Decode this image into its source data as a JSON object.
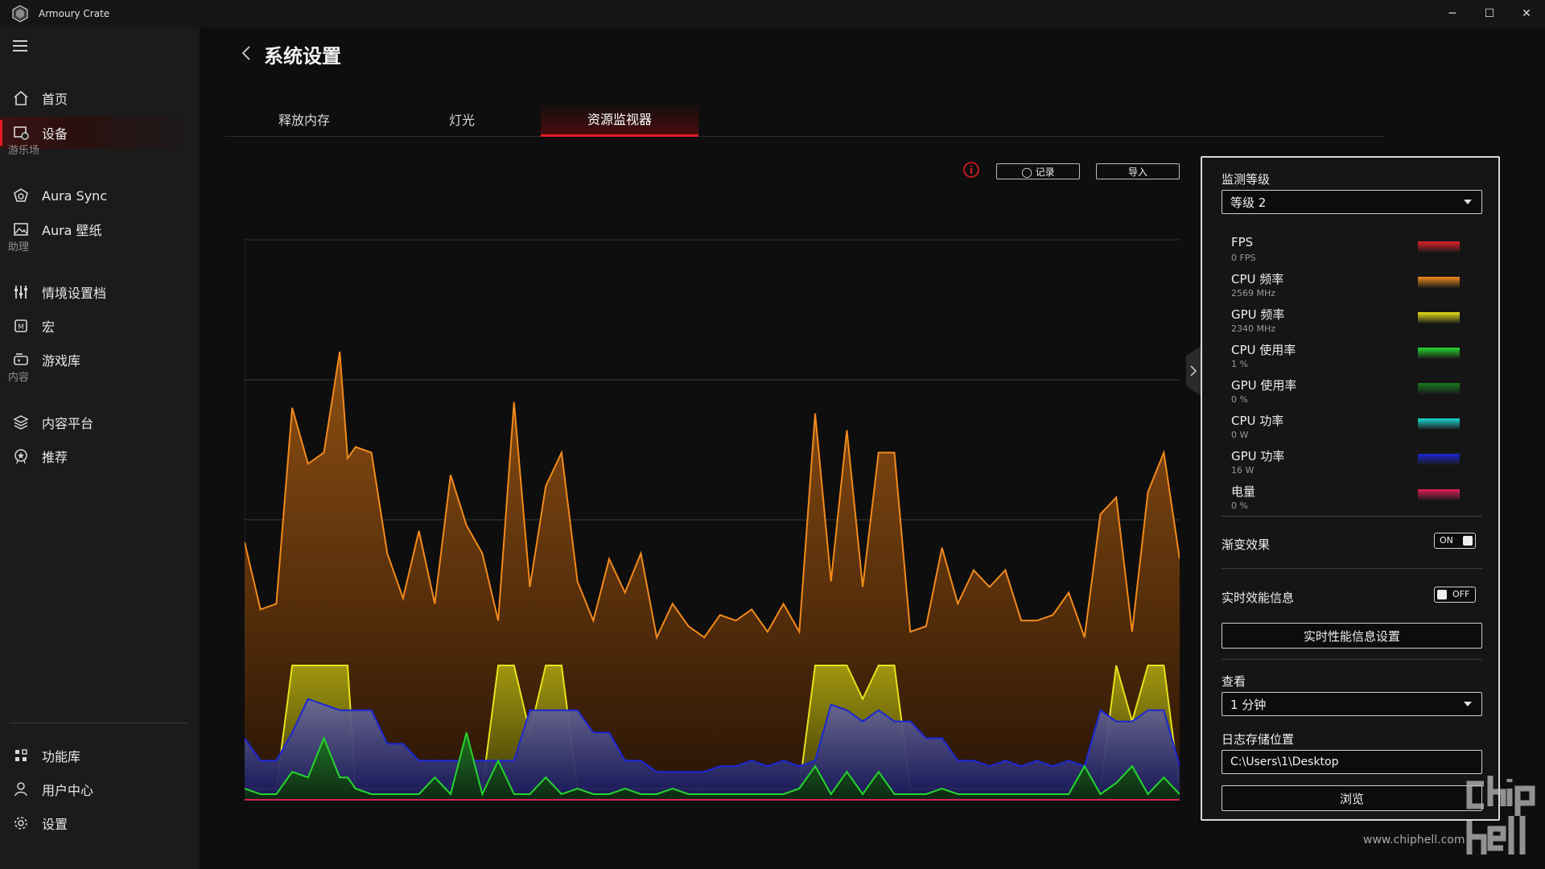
{
  "window": {
    "title": "Armoury Crate",
    "minimize": "─",
    "maximize": "☐",
    "close": "✕"
  },
  "sidebar": {
    "items": [
      {
        "label": "首页",
        "icon": "home-icon"
      },
      {
        "label": "设备",
        "icon": "device-icon",
        "active": true
      },
      {
        "label": "Aura Sync",
        "icon": "aura-sync-icon"
      },
      {
        "label": "Aura 壁纸",
        "icon": "wallpaper-icon"
      },
      {
        "label": "情境设置档",
        "icon": "scenario-icon"
      },
      {
        "label": "宏",
        "icon": "macro-icon"
      },
      {
        "label": "游戏库",
        "icon": "game-library-icon"
      },
      {
        "label": "内容平台",
        "icon": "layers-icon"
      },
      {
        "label": "推荐",
        "icon": "recommend-icon"
      }
    ],
    "sections": [
      "游乐场",
      "助理",
      "内容"
    ],
    "bottom_items": [
      {
        "label": "功能库",
        "icon": "feature-library-icon"
      },
      {
        "label": "用户中心",
        "icon": "user-center-icon"
      },
      {
        "label": "设置",
        "icon": "settings-icon"
      }
    ]
  },
  "page": {
    "title": "系统设置",
    "tabs": [
      {
        "label": "释放内存"
      },
      {
        "label": "灯光"
      },
      {
        "label": "资源监视器",
        "active": true
      }
    ],
    "record_button": "◯ 记录",
    "import_button": "导入"
  },
  "panel": {
    "monitor_level_label": "监测等级",
    "monitor_level_value": "等级 2",
    "metrics": [
      {
        "name": "FPS",
        "value": "0 FPS",
        "color": "#e0222c"
      },
      {
        "name": "CPU 频率",
        "value": "2569 MHz",
        "color": "#f28a1c"
      },
      {
        "name": "GPU 频率",
        "value": "2340 MHz",
        "color": "#e8e21a"
      },
      {
        "name": "CPU 使用率",
        "value": "1 %",
        "color": "#25d62c"
      },
      {
        "name": "GPU 使用率",
        "value": "0 %",
        "color": "#157a1e"
      },
      {
        "name": "CPU 功率",
        "value": "0 W",
        "color": "#19d8d0"
      },
      {
        "name": "GPU 功率",
        "value": "16 W",
        "color": "#1a26d6"
      },
      {
        "name": "电量",
        "value": "0 %",
        "color": "#e0205a"
      }
    ],
    "gradient_label": "渐变效果",
    "gradient_toggle": "ON",
    "realtime_label": "实时效能信息",
    "realtime_toggle": "OFF",
    "realtime_settings_button": "实时性能信息设置",
    "view_label": "查看",
    "view_value": "1 分钟",
    "log_path_label": "日志存储位置",
    "log_path_value": "C:\\Users\\1\\Desktop",
    "browse_button": "浏览"
  },
  "watermark": {
    "url": "www.chiphell.com",
    "logo_text": "chip hell"
  },
  "chart_data": {
    "type": "area",
    "ylim": [
      0,
      100
    ],
    "grid": true,
    "series": [
      {
        "name": "CPU 频率",
        "color": "#f28a1c",
        "values": [
          46,
          34,
          35,
          70,
          60,
          62,
          80,
          61,
          63,
          62,
          44,
          36,
          48,
          35,
          58,
          49,
          44,
          32,
          71,
          38,
          56,
          62,
          39,
          32,
          43,
          37,
          44,
          29,
          35,
          31,
          29,
          33,
          32,
          34,
          30,
          35,
          30,
          69,
          39,
          66,
          38,
          62,
          62,
          30,
          31,
          45,
          35,
          41,
          38,
          41,
          32,
          32,
          33,
          37,
          29,
          51,
          54,
          30,
          55,
          62,
          43
        ],
        "points_x": [
          0,
          2,
          4,
          6,
          8,
          10,
          12,
          13,
          14,
          16,
          18,
          20,
          22,
          24,
          26,
          28,
          30,
          32,
          34,
          36,
          38,
          40,
          42,
          44,
          46,
          48,
          50,
          52,
          54,
          56,
          58,
          60,
          62,
          64,
          66,
          68,
          70,
          72,
          74,
          76,
          78,
          80,
          82,
          84,
          86,
          88,
          90,
          92,
          94,
          96,
          98,
          100,
          102,
          104,
          106,
          108,
          110,
          112,
          114,
          116,
          118
        ]
      },
      {
        "name": "GPU 频率",
        "color": "#e8e21a",
        "values": [
          2,
          2,
          2,
          24,
          24,
          24,
          24,
          24,
          2,
          2,
          2,
          2,
          2,
          2,
          2,
          2,
          2,
          24,
          24,
          12,
          24,
          24,
          2,
          2,
          2,
          2,
          2,
          2,
          2,
          2,
          2,
          2,
          2,
          2,
          2,
          2,
          2,
          24,
          24,
          24,
          18,
          24,
          24,
          2,
          2,
          2,
          2,
          2,
          2,
          2,
          2,
          2,
          2,
          2,
          2,
          2,
          24,
          14,
          24,
          24,
          2
        ],
        "points_x": [
          0,
          2,
          4,
          6,
          8,
          10,
          12,
          13,
          14,
          16,
          18,
          20,
          22,
          24,
          26,
          28,
          30,
          32,
          34,
          36,
          38,
          40,
          42,
          44,
          46,
          48,
          50,
          52,
          54,
          56,
          58,
          60,
          62,
          64,
          66,
          68,
          70,
          72,
          74,
          76,
          78,
          80,
          82,
          84,
          86,
          88,
          90,
          92,
          94,
          96,
          98,
          100,
          102,
          104,
          106,
          108,
          110,
          112,
          114,
          116,
          118
        ]
      },
      {
        "name": "GPU 功率",
        "color": "#1a26d6",
        "values": [
          11,
          7,
          7,
          12,
          18,
          17,
          16,
          16,
          16,
          16,
          10,
          10,
          7,
          7,
          7,
          7,
          7,
          7,
          7,
          16,
          16,
          16,
          16,
          12,
          12,
          7,
          7,
          5,
          5,
          5,
          5,
          6,
          6,
          7,
          6,
          7,
          6,
          7,
          17,
          16,
          14,
          16,
          14,
          14,
          11,
          11,
          7,
          7,
          6,
          7,
          6,
          7,
          6,
          7,
          6,
          16,
          14,
          14,
          16,
          16,
          6
        ],
        "points_x": [
          0,
          2,
          4,
          6,
          8,
          10,
          12,
          13,
          14,
          16,
          18,
          20,
          22,
          24,
          26,
          28,
          30,
          32,
          34,
          36,
          38,
          40,
          42,
          44,
          46,
          48,
          50,
          52,
          54,
          56,
          58,
          60,
          62,
          64,
          66,
          68,
          70,
          72,
          74,
          76,
          78,
          80,
          82,
          84,
          86,
          88,
          90,
          92,
          94,
          96,
          98,
          100,
          102,
          104,
          106,
          108,
          110,
          112,
          114,
          116,
          118
        ]
      },
      {
        "name": "CPU 使用率",
        "color": "#25d62c",
        "values": [
          2,
          1,
          1,
          5,
          4,
          11,
          4,
          4,
          2,
          1,
          1,
          1,
          1,
          4,
          1,
          12,
          1,
          7,
          1,
          1,
          4,
          1,
          2,
          1,
          1,
          2,
          1,
          1,
          2,
          1,
          1,
          1,
          1,
          1,
          1,
          1,
          2,
          6,
          1,
          5,
          1,
          5,
          1,
          1,
          1,
          2,
          1,
          1,
          1,
          1,
          1,
          1,
          1,
          1,
          6,
          1,
          3,
          6,
          1,
          4,
          1
        ],
        "points_x": [
          0,
          2,
          4,
          6,
          8,
          10,
          12,
          13,
          14,
          16,
          18,
          20,
          22,
          24,
          26,
          28,
          30,
          32,
          34,
          36,
          38,
          40,
          42,
          44,
          46,
          48,
          50,
          52,
          54,
          56,
          58,
          60,
          62,
          64,
          66,
          68,
          70,
          72,
          74,
          76,
          78,
          80,
          82,
          84,
          86,
          88,
          90,
          92,
          94,
          96,
          98,
          100,
          102,
          104,
          106,
          108,
          110,
          112,
          114,
          116,
          118
        ]
      }
    ]
  }
}
